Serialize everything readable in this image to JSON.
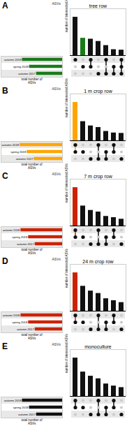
{
  "chart_data": [
    {
      "type": "upset",
      "title": "tree row",
      "annotations": [
        "A",
        "ASVs"
      ],
      "ylabel": "number of intersected ASVs",
      "xlabel": "total number of\nASVs",
      "values": [
        420,
        190,
        180,
        155,
        110,
        65,
        60
      ],
      "colors": [
        "#111111",
        "#1a7a1a",
        "#111111",
        "#111111",
        "#111111",
        "#111111",
        "#111111"
      ],
      "ylim": [
        0,
        512.4
      ],
      "tick_labels": false,
      "matrix": [
        [
          1,
          0,
          1,
          0,
          1,
          0,
          1
        ],
        [
          0,
          1,
          1,
          0,
          0,
          1,
          1
        ],
        [
          0,
          0,
          0,
          1,
          1,
          1,
          1
        ]
      ],
      "marker_colors": [
        "#cccccc",
        "#111111"
      ],
      "stripe_color": "#e8e8e8",
      "sets": {
        "names": [
          "autumn 2018",
          "spring 2018",
          "autumn 2017"
        ],
        "values": [
          0.85,
          0.7,
          0.55
        ],
        "colors": [
          "#1a7a1a",
          "#1a7a1a",
          "#1a7a1a"
        ],
        "xlim": [
          0,
          1.3
        ]
      }
    },
    {
      "type": "upset",
      "title": "1 m crop row",
      "annotations": [
        "B",
        "ASVs"
      ],
      "ylabel": "number of intersected ASVs",
      "xlabel": "total number of\nASVs",
      "values": [
        490,
        245,
        190,
        170,
        120,
        100,
        95
      ],
      "colors": [
        "#FFA500",
        "#111111",
        "#111111",
        "#111111",
        "#111111",
        "#111111",
        "#111111"
      ],
      "ylim": [
        0,
        597.8
      ],
      "tick_labels": false,
      "matrix": [
        [
          1,
          0,
          0,
          1,
          0,
          1,
          0
        ],
        [
          1,
          1,
          0,
          0,
          1,
          1,
          0
        ],
        [
          0,
          0,
          1,
          1,
          1,
          0,
          1
        ]
      ],
      "marker_colors": [
        "#cccccc",
        "#111111"
      ],
      "stripe_color": "#e8e8e8",
      "sets": {
        "names": [
          "autumn 2018",
          "spring 2018",
          "autumn 2017"
        ],
        "values": [
          0.9,
          0.75,
          0.6
        ],
        "colors": [
          "#FFA500",
          "#FFA500",
          "#FFA500"
        ],
        "xlim": [
          0,
          1.3
        ]
      }
    },
    {
      "type": "upset",
      "title": "7 m crop row",
      "annotations": [
        "C",
        "ASVs"
      ],
      "ylabel": "number of intersected ASVs",
      "xlabel": "total number of\nASVs",
      "values": [
        480,
        250,
        195,
        175,
        120,
        105,
        85
      ],
      "colors": [
        "#cc2200",
        "#111111",
        "#111111",
        "#111111",
        "#111111",
        "#111111",
        "#111111"
      ],
      "ylim": [
        0,
        585.6
      ],
      "tick_labels": false,
      "matrix": [
        [
          1,
          0,
          0,
          1,
          0,
          1,
          0
        ],
        [
          1,
          1,
          0,
          0,
          1,
          1,
          0
        ],
        [
          0,
          0,
          1,
          1,
          1,
          0,
          1
        ]
      ],
      "marker_colors": [
        "#cccccc",
        "#111111"
      ],
      "stripe_color": "#e8e8e8",
      "sets": {
        "names": [
          "autumn 2018",
          "spring 2018",
          "autumn 2017"
        ],
        "values": [
          0.88,
          0.72,
          0.58
        ],
        "colors": [
          "#cc2200",
          "#cc2200",
          "#cc2200"
        ],
        "xlim": [
          0,
          1.3
        ]
      }
    },
    {
      "type": "upset",
      "title": "24 m crop row",
      "annotations": [
        "D",
        "ASVs"
      ],
      "ylabel": "number of intersected ASVs",
      "xlabel": "total number of\nASVs",
      "values": [
        400,
        260,
        210,
        185,
        130,
        110,
        90
      ],
      "colors": [
        "#cc2200",
        "#111111",
        "#111111",
        "#111111",
        "#111111",
        "#111111",
        "#111111"
      ],
      "ylim": [
        0,
        488
      ],
      "tick_labels": false,
      "matrix": [
        [
          1,
          0,
          0,
          1,
          0,
          1,
          0
        ],
        [
          1,
          1,
          0,
          0,
          1,
          1,
          0
        ],
        [
          0,
          0,
          1,
          1,
          1,
          0,
          1
        ]
      ],
      "marker_colors": [
        "#cccccc",
        "#111111"
      ],
      "stripe_color": "#e8e8e8",
      "sets": {
        "names": [
          "autumn 2018",
          "spring 2018",
          "autumn 2017"
        ],
        "values": [
          0.88,
          0.72,
          0.58
        ],
        "colors": [
          "#cc2200",
          "#cc2200",
          "#cc2200"
        ],
        "xlim": [
          0,
          1.3
        ]
      }
    },
    {
      "type": "upset",
      "title": "monoculture",
      "annotations": [
        "E",
        "ASVs"
      ],
      "ylabel": "number of intersected ASVs",
      "xlabel": "total number of\nASVs",
      "values": [
        370,
        235,
        195,
        170,
        120,
        100,
        85
      ],
      "colors": [
        "#111111",
        "#111111",
        "#111111",
        "#111111",
        "#111111",
        "#111111",
        "#111111"
      ],
      "ylim": [
        0,
        451.4
      ],
      "tick_labels": false,
      "matrix": [
        [
          1,
          0,
          0,
          1,
          0,
          1,
          0
        ],
        [
          1,
          1,
          0,
          0,
          1,
          1,
          0
        ],
        [
          0,
          0,
          1,
          1,
          1,
          0,
          1
        ]
      ],
      "marker_colors": [
        "#cccccc",
        "#111111"
      ],
      "stripe_color": "#e8e8e8",
      "sets": {
        "names": [
          "autumn 2018",
          "spring 2018",
          "autumn 2017"
        ],
        "values": [
          0.85,
          0.7,
          0.55
        ],
        "colors": [
          "#111111",
          "#111111",
          "#111111"
        ],
        "xlim": [
          0,
          1.3
        ]
      }
    }
  ]
}
